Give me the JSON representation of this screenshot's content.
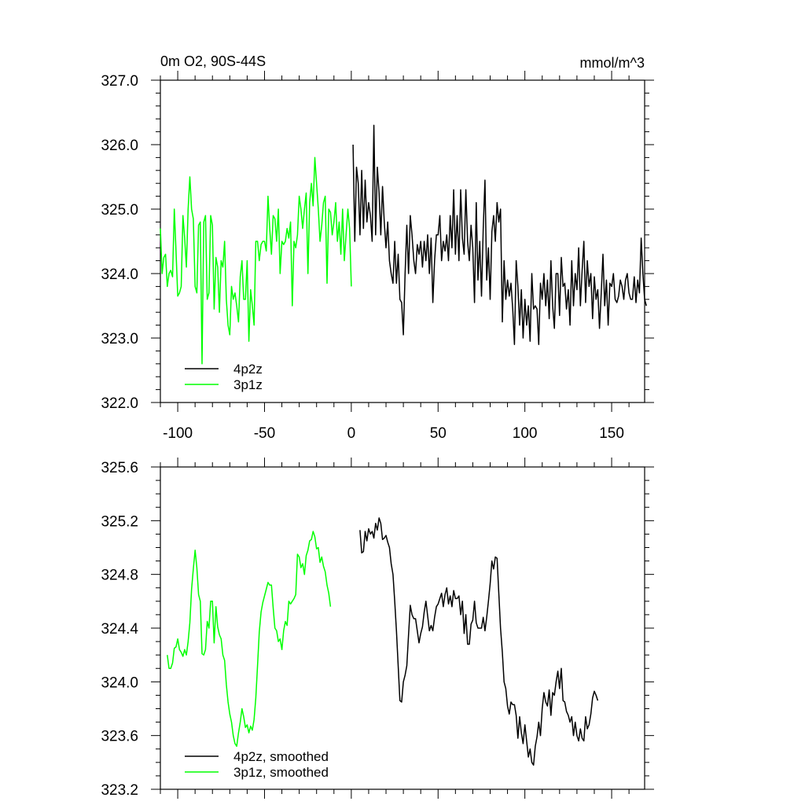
{
  "chart_data": [
    {
      "type": "line",
      "title": "0m O2, 90S-44S",
      "units": "mmol/m^3",
      "xlim": [
        -110,
        169
      ],
      "ylim": [
        322.0,
        327.0
      ],
      "xticks": [
        -100,
        -50,
        0,
        50,
        100,
        150
      ],
      "xtick_labels": [
        "-100",
        "-50",
        "0",
        "50",
        "100",
        "150"
      ],
      "yticks": [
        322.0,
        323.0,
        324.0,
        325.0,
        326.0,
        327.0
      ],
      "ytick_labels": [
        "322.0",
        "323.0",
        "324.0",
        "325.0",
        "326.0",
        "327.0"
      ],
      "legend_position": "bottom-left",
      "series": [
        {
          "name": "4p2z",
          "color": "#000000",
          "x_start": 1,
          "x_step": 1,
          "values": [
            326.0,
            324.5,
            325.65,
            325.4,
            324.6,
            325.6,
            324.7,
            325.45,
            324.8,
            325.1,
            324.9,
            324.5,
            326.3,
            324.6,
            325.65,
            325.25,
            324.6,
            325.35,
            324.8,
            324.4,
            324.8,
            324.2,
            324.0,
            323.85,
            324.5,
            323.85,
            324.3,
            323.6,
            323.55,
            323.05,
            324.0,
            324.75,
            324.0,
            324.9,
            324.6,
            324.2,
            324.0,
            324.45,
            324.3,
            324.5,
            324.1,
            324.5,
            324.2,
            324.6,
            324.0,
            324.55,
            323.55,
            324.2,
            324.6,
            324.6,
            324.9,
            324.2,
            324.5,
            324.35,
            324.6,
            324.2,
            324.9,
            324.4,
            325.3,
            324.3,
            324.9,
            324.2,
            325.3,
            324.55,
            324.3,
            325.3,
            324.5,
            324.2,
            324.75,
            324.4,
            323.55,
            325.1,
            323.9,
            324.5,
            323.65,
            324.7,
            325.45,
            323.9,
            324.4,
            323.6,
            324.65,
            324.9,
            324.5,
            325.1,
            324.8,
            325.0,
            323.25,
            324.2,
            323.6,
            323.9,
            323.65,
            323.85,
            323.45,
            322.9,
            324.2,
            323.8,
            323.2,
            323.75,
            323.0,
            323.6,
            323.2,
            323.5,
            322.95,
            324.0,
            323.45,
            323.5,
            323.45,
            322.9,
            323.85,
            323.6,
            324.0,
            323.5,
            323.9,
            323.3,
            324.2,
            323.5,
            323.15,
            324.0,
            324.0,
            323.35,
            324.25,
            323.8,
            323.85,
            323.45,
            323.75,
            323.2,
            324.2,
            323.5,
            324.0,
            323.75,
            324.4,
            323.5,
            324.05,
            324.5,
            323.55,
            324.2,
            323.8,
            324.0,
            323.3,
            323.95,
            323.6,
            323.75,
            323.15,
            323.7,
            324.3,
            323.5,
            323.9,
            323.2,
            323.85,
            323.8,
            324.0,
            323.6,
            323.55,
            323.65,
            323.9,
            323.8,
            323.6,
            323.9,
            324.0,
            323.7,
            323.6,
            323.6,
            323.95,
            323.55,
            323.9,
            323.7,
            324.55,
            324.0,
            323.6,
            323.5
          ]
        },
        {
          "name": "3p1z",
          "color": "#00ff00",
          "x_start": -110,
          "x_step": 1,
          "values": [
            324.7,
            324.0,
            324.25,
            324.3,
            323.8,
            324.0,
            324.05,
            323.95,
            325.0,
            324.35,
            323.65,
            323.7,
            323.8,
            324.9,
            324.55,
            324.1,
            325.0,
            325.5,
            325.0,
            324.85,
            323.8,
            323.7,
            324.75,
            324.8,
            322.6,
            324.8,
            324.9,
            323.6,
            323.7,
            324.9,
            324.75,
            323.45,
            324.25,
            324.1,
            323.4,
            324.2,
            324.1,
            324.5,
            323.6,
            323.2,
            323.05,
            323.8,
            323.6,
            323.7,
            323.5,
            323.25,
            323.95,
            324.2,
            323.6,
            323.6,
            324.2,
            322.95,
            323.75,
            323.5,
            323.2,
            324.5,
            324.5,
            324.2,
            324.45,
            324.5,
            324.5,
            324.35,
            325.2,
            324.7,
            324.3,
            324.9,
            324.85,
            324.5,
            325.0,
            324.0,
            324.5,
            324.45,
            324.5,
            324.7,
            324.55,
            324.8,
            323.5,
            324.5,
            324.4,
            324.6,
            325.2,
            325.0,
            324.7,
            325.0,
            325.25,
            324.0,
            325.1,
            325.4,
            325.05,
            325.8,
            325.4,
            325.0,
            324.5,
            324.75,
            325.1,
            325.2,
            323.85,
            325.0,
            324.95,
            324.6,
            324.8,
            325.1,
            324.5,
            324.8,
            324.3,
            325.0,
            324.2,
            324.6,
            325.0,
            324.7,
            323.8
          ]
        }
      ]
    },
    {
      "type": "line",
      "xlim": [
        -110,
        169
      ],
      "ylim": [
        323.2,
        325.6
      ],
      "xticks": [
        -100,
        -50,
        0,
        50,
        100,
        150
      ],
      "yticks": [
        323.2,
        323.6,
        324.0,
        324.4,
        324.8,
        325.2,
        325.6
      ],
      "ytick_labels": [
        "323.2",
        "323.6",
        "324.0",
        "324.4",
        "324.8",
        "325.2",
        "325.6"
      ],
      "legend_position": "bottom-left",
      "series": [
        {
          "name": "4p2z, smoothed",
          "color": "#000000",
          "x_start": 5,
          "x_step": 1,
          "values": [
            325.13,
            324.96,
            324.97,
            325.12,
            325.05,
            325.14,
            325.1,
            325.12,
            325.07,
            325.18,
            325.13,
            325.22,
            325.18,
            325.06,
            325.07,
            325.09,
            325.04,
            325.0,
            324.88,
            324.8,
            324.6,
            324.38,
            324.12,
            323.86,
            323.85,
            324.0,
            324.05,
            324.12,
            324.35,
            324.57,
            324.5,
            324.47,
            324.47,
            324.38,
            324.29,
            324.36,
            324.41,
            324.52,
            324.6,
            324.49,
            324.38,
            324.42,
            324.38,
            324.48,
            324.56,
            324.58,
            324.62,
            324.66,
            324.56,
            324.65,
            324.7,
            324.58,
            324.64,
            324.56,
            324.68,
            324.62,
            324.62,
            324.64,
            324.5,
            324.6,
            324.36,
            324.5,
            324.28,
            324.28,
            324.43,
            324.46,
            324.6,
            324.44,
            324.4,
            324.4,
            324.4,
            324.48,
            324.38,
            324.48,
            324.6,
            324.73,
            324.9,
            324.84,
            324.93,
            324.92,
            324.66,
            324.4,
            324.22,
            324.0,
            323.95,
            323.82,
            323.76,
            323.85,
            323.83,
            323.83,
            323.75,
            323.58,
            323.74,
            323.62,
            323.54,
            323.68,
            323.56,
            323.44,
            323.5,
            323.4,
            323.38,
            323.52,
            323.59,
            323.7,
            323.6,
            323.8,
            323.92,
            323.85,
            323.82,
            323.94,
            323.75,
            323.92,
            323.9,
            324.0,
            324.08,
            323.95,
            324.1,
            323.86,
            323.85,
            323.78,
            323.75,
            323.7,
            323.74,
            323.6,
            323.7,
            323.6,
            323.56,
            323.65,
            323.58,
            323.56,
            323.74,
            323.65,
            323.68,
            323.76,
            323.88,
            323.93,
            323.9,
            323.86
          ]
        },
        {
          "name": "3p1z, smoothed",
          "color": "#00ff00",
          "x_start": -106,
          "x_step": 1,
          "values": [
            324.2,
            324.1,
            324.1,
            324.14,
            324.25,
            324.26,
            324.32,
            324.24,
            324.22,
            324.19,
            324.24,
            324.2,
            324.3,
            324.44,
            324.69,
            324.84,
            324.98,
            324.85,
            324.65,
            324.6,
            324.21,
            324.2,
            324.24,
            324.45,
            324.4,
            324.6,
            324.6,
            324.29,
            324.56,
            324.41,
            324.35,
            324.32,
            324.2,
            324.16,
            323.98,
            323.85,
            323.76,
            323.7,
            323.6,
            323.54,
            323.52,
            323.62,
            323.7,
            323.8,
            323.74,
            323.66,
            323.68,
            323.62,
            323.67,
            323.64,
            323.72,
            323.88,
            324.12,
            324.37,
            324.52,
            324.59,
            324.64,
            324.69,
            324.74,
            324.72,
            324.72,
            324.55,
            324.4,
            324.38,
            324.3,
            324.32,
            324.24,
            324.38,
            324.45,
            324.42,
            324.6,
            324.58,
            324.6,
            324.62,
            324.65,
            324.95,
            324.93,
            324.85,
            324.88,
            324.8,
            324.94,
            324.98,
            325.05,
            325.06,
            325.12,
            325.08,
            324.99,
            325.0,
            324.89,
            324.93,
            324.86,
            324.82,
            324.72,
            324.66,
            324.56
          ]
        }
      ]
    }
  ]
}
